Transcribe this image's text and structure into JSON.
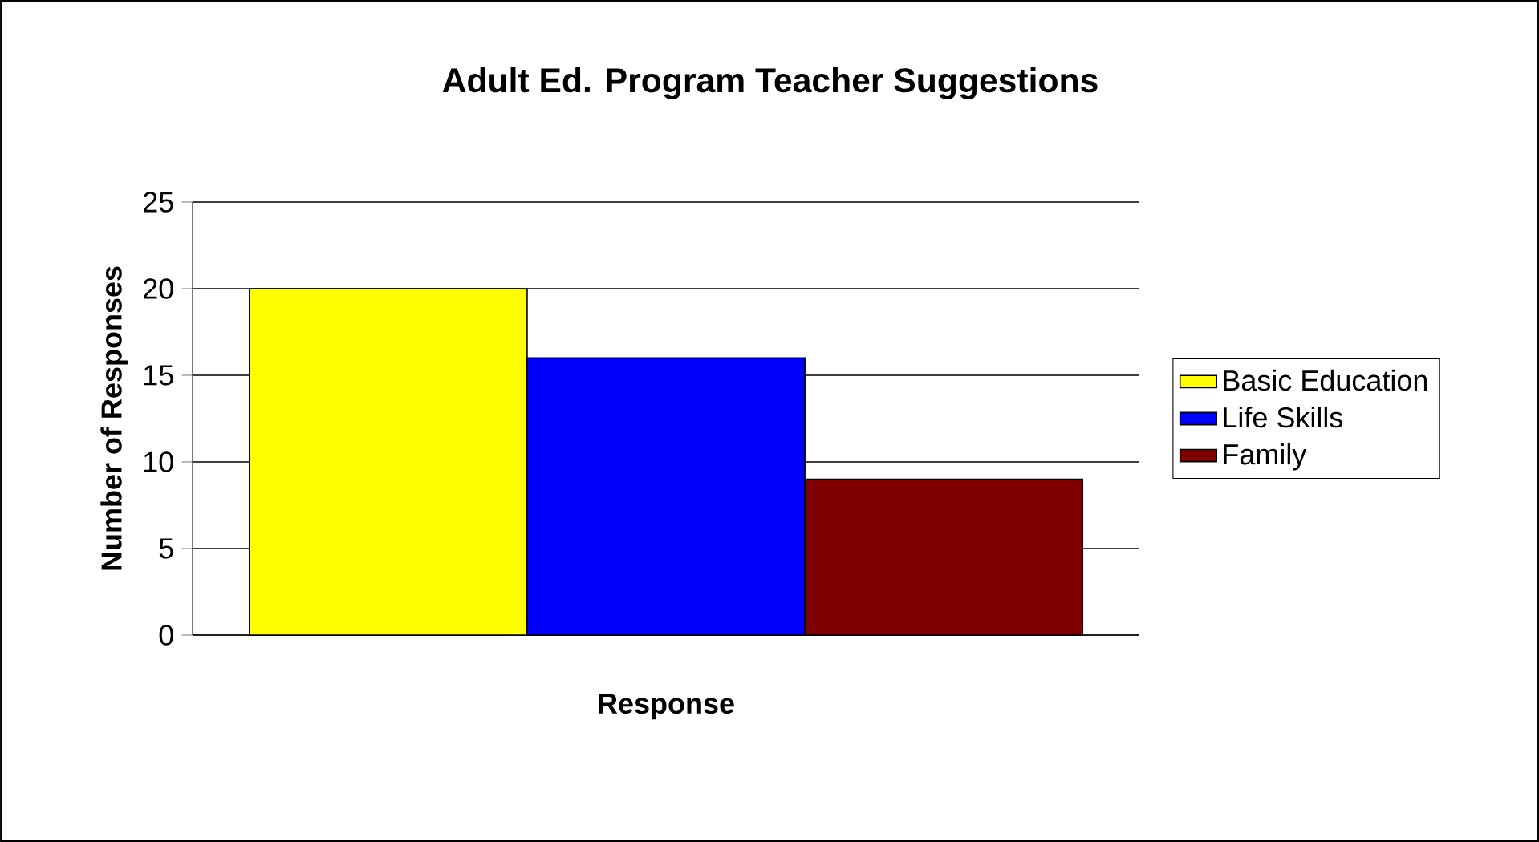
{
  "chart_data": {
    "type": "bar",
    "title": "Adult Ed. Program Teacher Suggestions",
    "xlabel": "Response",
    "ylabel": "Number of Responses",
    "categories": [
      null
    ],
    "series": [
      {
        "name": "Basic Education",
        "color": "#ffff00",
        "values": [
          20
        ]
      },
      {
        "name": "Life Skills",
        "color": "#0000ff",
        "values": [
          16
        ]
      },
      {
        "name": "Family",
        "color": "#800000",
        "values": [
          9
        ]
      }
    ],
    "ylim": [
      0,
      25
    ],
    "yticks": [
      0,
      5,
      10,
      15,
      20,
      25
    ],
    "grid": "y",
    "legend": "right"
  }
}
